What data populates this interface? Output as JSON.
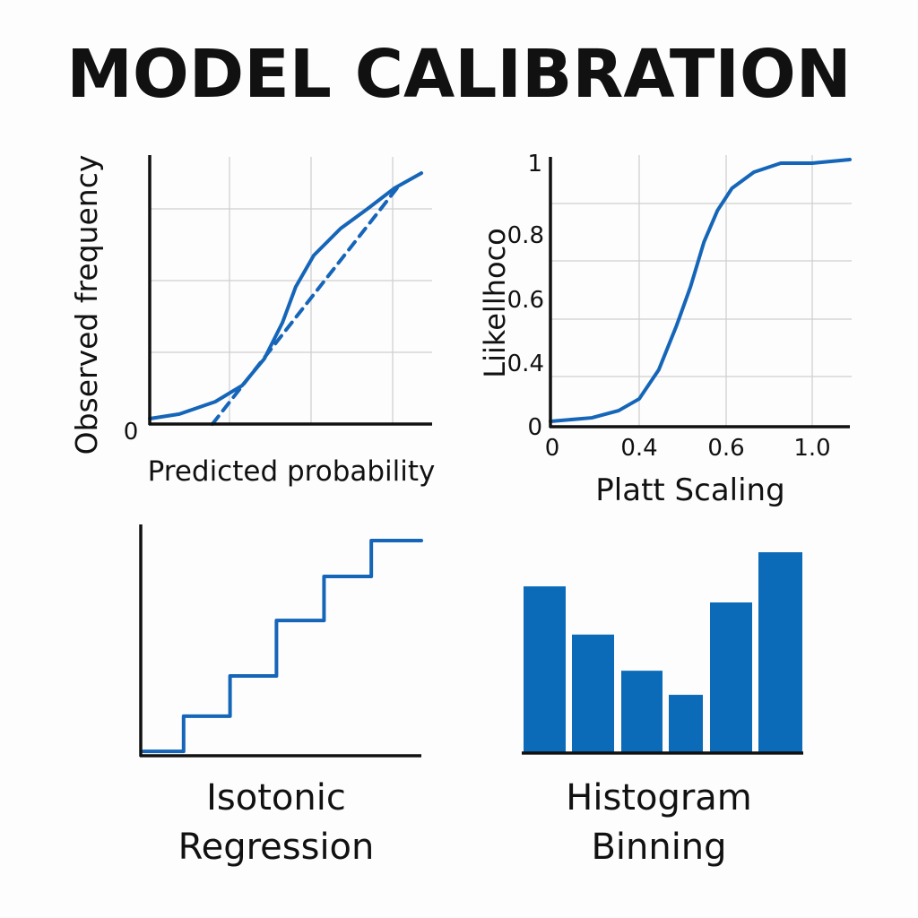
{
  "title": "MODEL CALIBRATION",
  "colors": {
    "series": "#1565b8",
    "bar": "#0b6bb8",
    "axis": "#111111",
    "grid": "#d0d0d0"
  },
  "chart_data": [
    {
      "type": "line",
      "xlabel": "Predicted probability",
      "ylabel": "Observed frequency",
      "y_tick_labels": [
        "0"
      ],
      "xlim": [
        0,
        1
      ],
      "ylim": [
        0,
        1
      ],
      "grid": true,
      "series": [
        {
          "style": "solid",
          "x": [
            0,
            0.105,
            0.232,
            0.327,
            0.406,
            0.47,
            0.517,
            0.581,
            0.676,
            0.771,
            0.867,
            0.962
          ],
          "y": [
            0.02,
            0.037,
            0.083,
            0.143,
            0.243,
            0.377,
            0.51,
            0.627,
            0.727,
            0.8,
            0.877,
            0.933
          ]
        },
        {
          "style": "dashed",
          "x": [
            0.222,
            0.883
          ],
          "y": [
            0,
            0.887
          ]
        }
      ]
    },
    {
      "type": "line",
      "xlabel": "Platt Scaling",
      "ylabel": "Liikellhoco",
      "x_ticks": [
        0,
        0.4,
        0.6,
        1.0
      ],
      "x_tick_labels": [
        "0",
        "0.4",
        "0.6",
        "1.0"
      ],
      "y_ticks": [
        0,
        0.4,
        0.6,
        0.8,
        1
      ],
      "y_tick_labels": [
        "0",
        "0.4",
        "0.6",
        "0.8",
        "1"
      ],
      "grid": true,
      "series": [
        {
          "style": "solid",
          "x": [
            0,
            0.186,
            0.307,
            0.4,
            0.445,
            0.486,
            0.518,
            0.549,
            0.58,
            0.627,
            0.729,
            0.854,
            1.0,
            1.175
          ],
          "y": [
            0.034,
            0.056,
            0.101,
            0.175,
            0.358,
            0.518,
            0.639,
            0.778,
            0.868,
            0.93,
            0.975,
            1.0,
            1.0,
            1.01
          ]
        }
      ]
    },
    {
      "type": "line",
      "xlabel": [
        "Isotonic",
        "Regression"
      ],
      "step": true,
      "xlim": [
        0,
        1
      ],
      "ylim": [
        0,
        1
      ],
      "grid": false,
      "series": [
        {
          "style": "step",
          "x": [
            0,
            0.15,
            0.316,
            0.482,
            0.652,
            0.821,
            1.0
          ],
          "y": [
            0.019,
            0.171,
            0.345,
            0.585,
            0.775,
            0.93,
            0.93
          ]
        }
      ]
    },
    {
      "type": "bar",
      "xlabel": [
        "Histogram",
        "Binning"
      ],
      "values": [
        0.83,
        0.59,
        0.41,
        0.29,
        0.75,
        1.0
      ],
      "ylim": [
        0,
        1
      ],
      "grid": false
    }
  ]
}
